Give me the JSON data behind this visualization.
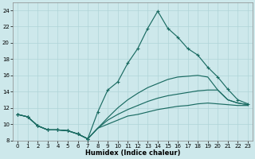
{
  "xlabel": "Humidex (Indice chaleur)",
  "ylabel": "",
  "xlim": [
    -0.5,
    23.5
  ],
  "ylim": [
    8,
    25
  ],
  "xticks": [
    0,
    1,
    2,
    3,
    4,
    5,
    6,
    7,
    8,
    9,
    10,
    11,
    12,
    13,
    14,
    15,
    16,
    17,
    18,
    19,
    20,
    21,
    22,
    23
  ],
  "yticks": [
    8,
    10,
    12,
    14,
    16,
    18,
    20,
    22,
    24
  ],
  "background_color": "#cde8eb",
  "grid_color": "#b0d4d8",
  "line_color": "#1a6b62",
  "series": [
    {
      "x": [
        0,
        1,
        2,
        3,
        4,
        5,
        6,
        7,
        8,
        9,
        10,
        11,
        12,
        13,
        14,
        15,
        16,
        17,
        18,
        19,
        20,
        21,
        22,
        23
      ],
      "y": [
        11.2,
        10.9,
        9.8,
        9.3,
        9.3,
        9.2,
        8.8,
        8.2,
        9.5,
        10.0,
        10.5,
        11.0,
        11.2,
        11.5,
        11.8,
        12.0,
        12.2,
        12.3,
        12.5,
        12.6,
        12.5,
        12.4,
        12.3,
        12.3
      ],
      "has_markers": true,
      "marker_indices": [
        0,
        1,
        2,
        3,
        4,
        5,
        6,
        7
      ]
    },
    {
      "x": [
        0,
        1,
        2,
        3,
        4,
        5,
        6,
        7,
        8,
        9,
        10,
        11,
        12,
        13,
        14,
        15,
        16,
        17,
        18,
        19,
        20,
        21,
        22,
        23
      ],
      "y": [
        11.2,
        10.9,
        9.8,
        9.3,
        9.3,
        9.2,
        8.8,
        8.2,
        9.5,
        10.5,
        11.2,
        11.8,
        12.3,
        12.8,
        13.2,
        13.5,
        13.7,
        13.9,
        14.1,
        14.2,
        14.2,
        13.0,
        12.6,
        12.4
      ],
      "has_markers": true,
      "marker_indices": [
        0,
        1,
        2,
        3,
        4,
        5,
        6,
        7
      ]
    },
    {
      "x": [
        0,
        1,
        2,
        3,
        4,
        5,
        6,
        7,
        8,
        9,
        10,
        11,
        12,
        13,
        14,
        15,
        16,
        17,
        18,
        19,
        20,
        21,
        22,
        23
      ],
      "y": [
        11.2,
        10.9,
        9.8,
        9.3,
        9.3,
        9.2,
        8.8,
        8.2,
        9.5,
        10.8,
        12.0,
        13.0,
        13.8,
        14.5,
        15.0,
        15.5,
        15.8,
        15.9,
        16.0,
        15.8,
        14.2,
        13.0,
        12.6,
        12.4
      ],
      "has_markers": true,
      "marker_indices": [
        0,
        1,
        2,
        3,
        4,
        5,
        6,
        7
      ]
    },
    {
      "x": [
        0,
        1,
        2,
        3,
        4,
        5,
        6,
        7,
        8,
        9,
        10,
        11,
        12,
        13,
        14,
        15,
        16,
        17,
        18,
        19,
        20,
        21,
        22,
        23
      ],
      "y": [
        11.2,
        10.9,
        9.8,
        9.3,
        9.3,
        9.2,
        8.8,
        8.2,
        11.5,
        14.2,
        15.2,
        17.5,
        19.3,
        21.8,
        23.9,
        21.8,
        20.7,
        19.3,
        18.5,
        17.0,
        15.8,
        14.3,
        13.0,
        12.5
      ],
      "has_markers": true,
      "marker_indices": [
        0,
        1,
        2,
        3,
        4,
        5,
        6,
        7,
        8,
        9,
        10,
        11,
        12,
        13,
        14,
        15,
        16,
        17,
        18,
        19,
        20,
        21,
        22,
        23
      ]
    }
  ]
}
